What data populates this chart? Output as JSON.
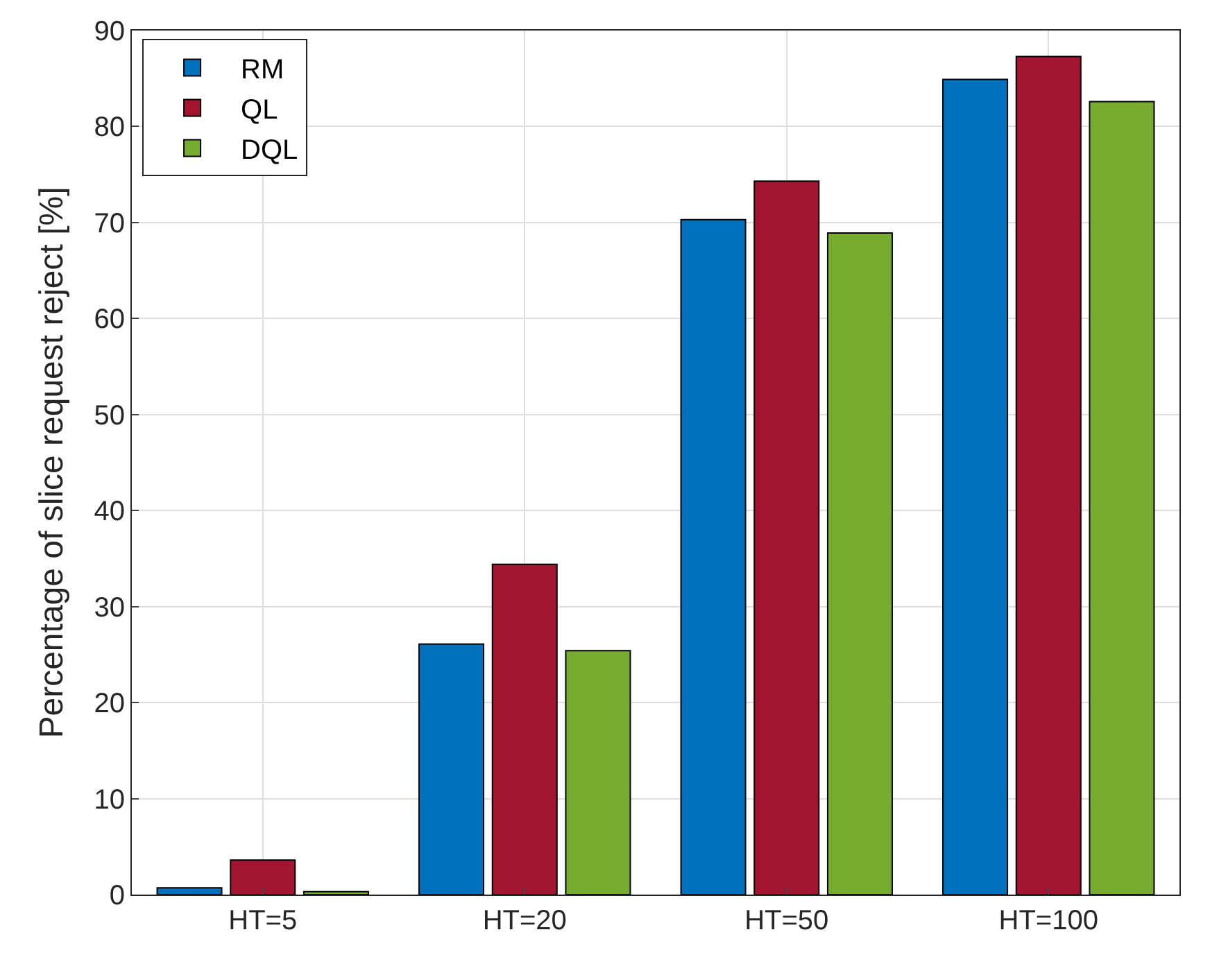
{
  "chart_data": {
    "type": "bar",
    "ylabel": "Percentage of slice request reject [%]",
    "categories": [
      "HT=5",
      "HT=20",
      "HT=50",
      "HT=100"
    ],
    "series": [
      {
        "name": "RM",
        "color": "#0072bd",
        "values": [
          0.7,
          26.1,
          70.3,
          84.9
        ]
      },
      {
        "name": "QL",
        "color": "#a2142f",
        "values": [
          3.6,
          34.4,
          74.3,
          87.3
        ]
      },
      {
        "name": "DQL",
        "color": "#77ac30",
        "values": [
          0.3,
          25.4,
          68.9,
          82.6
        ]
      }
    ],
    "ylim": [
      0,
      90
    ],
    "yticks": [
      0,
      10,
      20,
      30,
      40,
      50,
      60,
      70,
      80,
      90
    ],
    "grid": true,
    "legend": "top left"
  }
}
